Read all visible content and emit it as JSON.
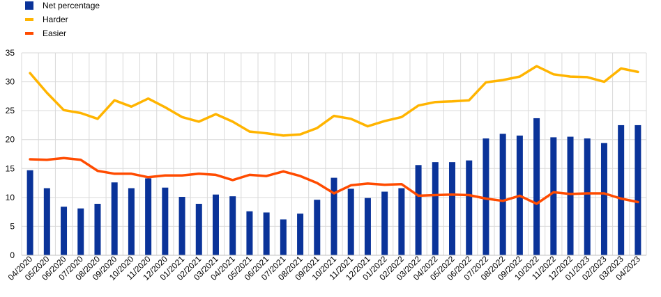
{
  "chart_data": {
    "type": "bar",
    "title": "",
    "xlabel": "",
    "ylabel": "",
    "ylim": [
      0,
      35
    ],
    "yticks": [
      0,
      5,
      10,
      15,
      20,
      25,
      30,
      35
    ],
    "grid": true,
    "legend_position": "top-left",
    "categories": [
      "04/2020",
      "05/2020",
      "06/2020",
      "07/2020",
      "08/2020",
      "09/2020",
      "10/2020",
      "11/2020",
      "12/2020",
      "01/2021",
      "02/2021",
      "03/2021",
      "04/2021",
      "05/2021",
      "06/2021",
      "07/2021",
      "08/2021",
      "09/2021",
      "10/2021",
      "11/2021",
      "12/2021",
      "01/2022",
      "02/2022",
      "03/2022",
      "04/2022",
      "05/2022",
      "06/2022",
      "07/2022",
      "08/2022",
      "09/2022",
      "10/2022",
      "11/2022",
      "12/2022",
      "01/2023",
      "02/2023",
      "03/2023",
      "04/2023"
    ],
    "series": [
      {
        "name": "Net percentage",
        "kind": "bar",
        "color": "#0a3399",
        "values": [
          14.7,
          11.6,
          8.4,
          8.1,
          8.9,
          12.6,
          11.6,
          13.3,
          11.7,
          10.1,
          8.9,
          10.5,
          10.2,
          7.6,
          7.4,
          6.2,
          7.2,
          9.6,
          13.4,
          11.5,
          9.9,
          11.0,
          11.6,
          15.6,
          16.1,
          16.1,
          16.4,
          20.2,
          21.0,
          20.7,
          23.7,
          20.4,
          20.5,
          20.2,
          19.4,
          22.5,
          22.5
        ]
      },
      {
        "name": "Harder",
        "kind": "line",
        "color": "#ffb400",
        "values": [
          31.5,
          28.1,
          25.1,
          24.6,
          23.6,
          26.8,
          25.7,
          27.1,
          25.6,
          23.9,
          23.1,
          24.4,
          23.1,
          21.4,
          21.1,
          20.7,
          20.9,
          22.0,
          24.1,
          23.6,
          22.3,
          23.2,
          23.9,
          25.9,
          26.5,
          26.6,
          26.8,
          29.9,
          30.3,
          30.9,
          32.7,
          31.3,
          30.9,
          30.8,
          30.0,
          32.3,
          31.7
        ]
      },
      {
        "name": "Easier",
        "kind": "line",
        "color": "#ff4b00",
        "values": [
          16.6,
          16.5,
          16.8,
          16.5,
          14.6,
          14.1,
          14.1,
          13.5,
          13.8,
          13.8,
          14.1,
          13.9,
          13.0,
          13.9,
          13.7,
          14.5,
          13.7,
          12.5,
          10.7,
          12.1,
          12.4,
          12.2,
          12.3,
          10.3,
          10.4,
          10.5,
          10.4,
          9.8,
          9.4,
          10.3,
          8.9,
          10.9,
          10.6,
          10.7,
          10.7,
          9.8,
          9.2
        ]
      }
    ]
  }
}
